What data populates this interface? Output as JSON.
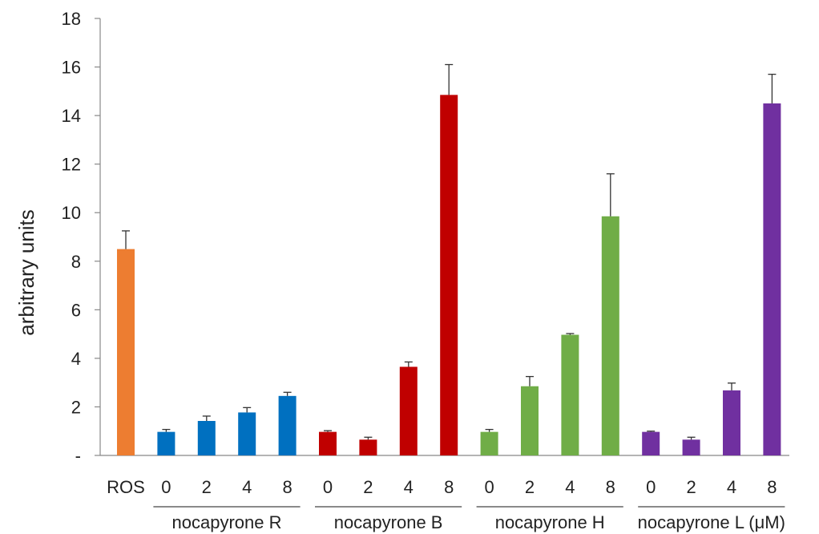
{
  "chart_data": {
    "type": "bar",
    "ylabel": "arbitrary units",
    "ylim": [
      0,
      18
    ],
    "yticks": [
      "-",
      "2",
      "4",
      "6",
      "8",
      "10",
      "12",
      "14",
      "16",
      "18"
    ],
    "grid": false,
    "legend": "none",
    "bars": [
      {
        "label": "ROS",
        "value": 8.5,
        "error": 0.75,
        "color": "#ED7D31"
      },
      {
        "label": "0",
        "value": 0.97,
        "error": 0.1,
        "color": "#0070C0"
      },
      {
        "label": "2",
        "value": 1.42,
        "error": 0.2,
        "color": "#0070C0"
      },
      {
        "label": "4",
        "value": 1.77,
        "error": 0.2,
        "color": "#0070C0"
      },
      {
        "label": "8",
        "value": 2.45,
        "error": 0.15,
        "color": "#0070C0"
      },
      {
        "label": "0",
        "value": 0.97,
        "error": 0.05,
        "color": "#C00000"
      },
      {
        "label": "2",
        "value": 0.65,
        "error": 0.1,
        "color": "#C00000"
      },
      {
        "label": "4",
        "value": 3.65,
        "error": 0.2,
        "color": "#C00000"
      },
      {
        "label": "8",
        "value": 14.85,
        "error": 1.25,
        "color": "#C00000"
      },
      {
        "label": "0",
        "value": 0.97,
        "error": 0.1,
        "color": "#70AD47"
      },
      {
        "label": "2",
        "value": 2.85,
        "error": 0.4,
        "color": "#70AD47"
      },
      {
        "label": "4",
        "value": 4.97,
        "error": 0.05,
        "color": "#70AD47"
      },
      {
        "label": "8",
        "value": 9.85,
        "error": 1.75,
        "color": "#70AD47"
      },
      {
        "label": "0",
        "value": 0.97,
        "error": 0.03,
        "color": "#7030A0"
      },
      {
        "label": "2",
        "value": 0.65,
        "error": 0.1,
        "color": "#7030A0"
      },
      {
        "label": "4",
        "value": 2.68,
        "error": 0.3,
        "color": "#7030A0"
      },
      {
        "label": "8",
        "value": 14.5,
        "error": 1.2,
        "color": "#7030A0"
      }
    ],
    "groups": [
      {
        "label": "nocapyrone R",
        "first": 1,
        "last": 4
      },
      {
        "label": "nocapyrone B",
        "first": 5,
        "last": 8
      },
      {
        "label": "nocapyrone H",
        "first": 9,
        "last": 12
      },
      {
        "label": "nocapyrone L (μM)",
        "first": 13,
        "last": 16
      }
    ]
  }
}
